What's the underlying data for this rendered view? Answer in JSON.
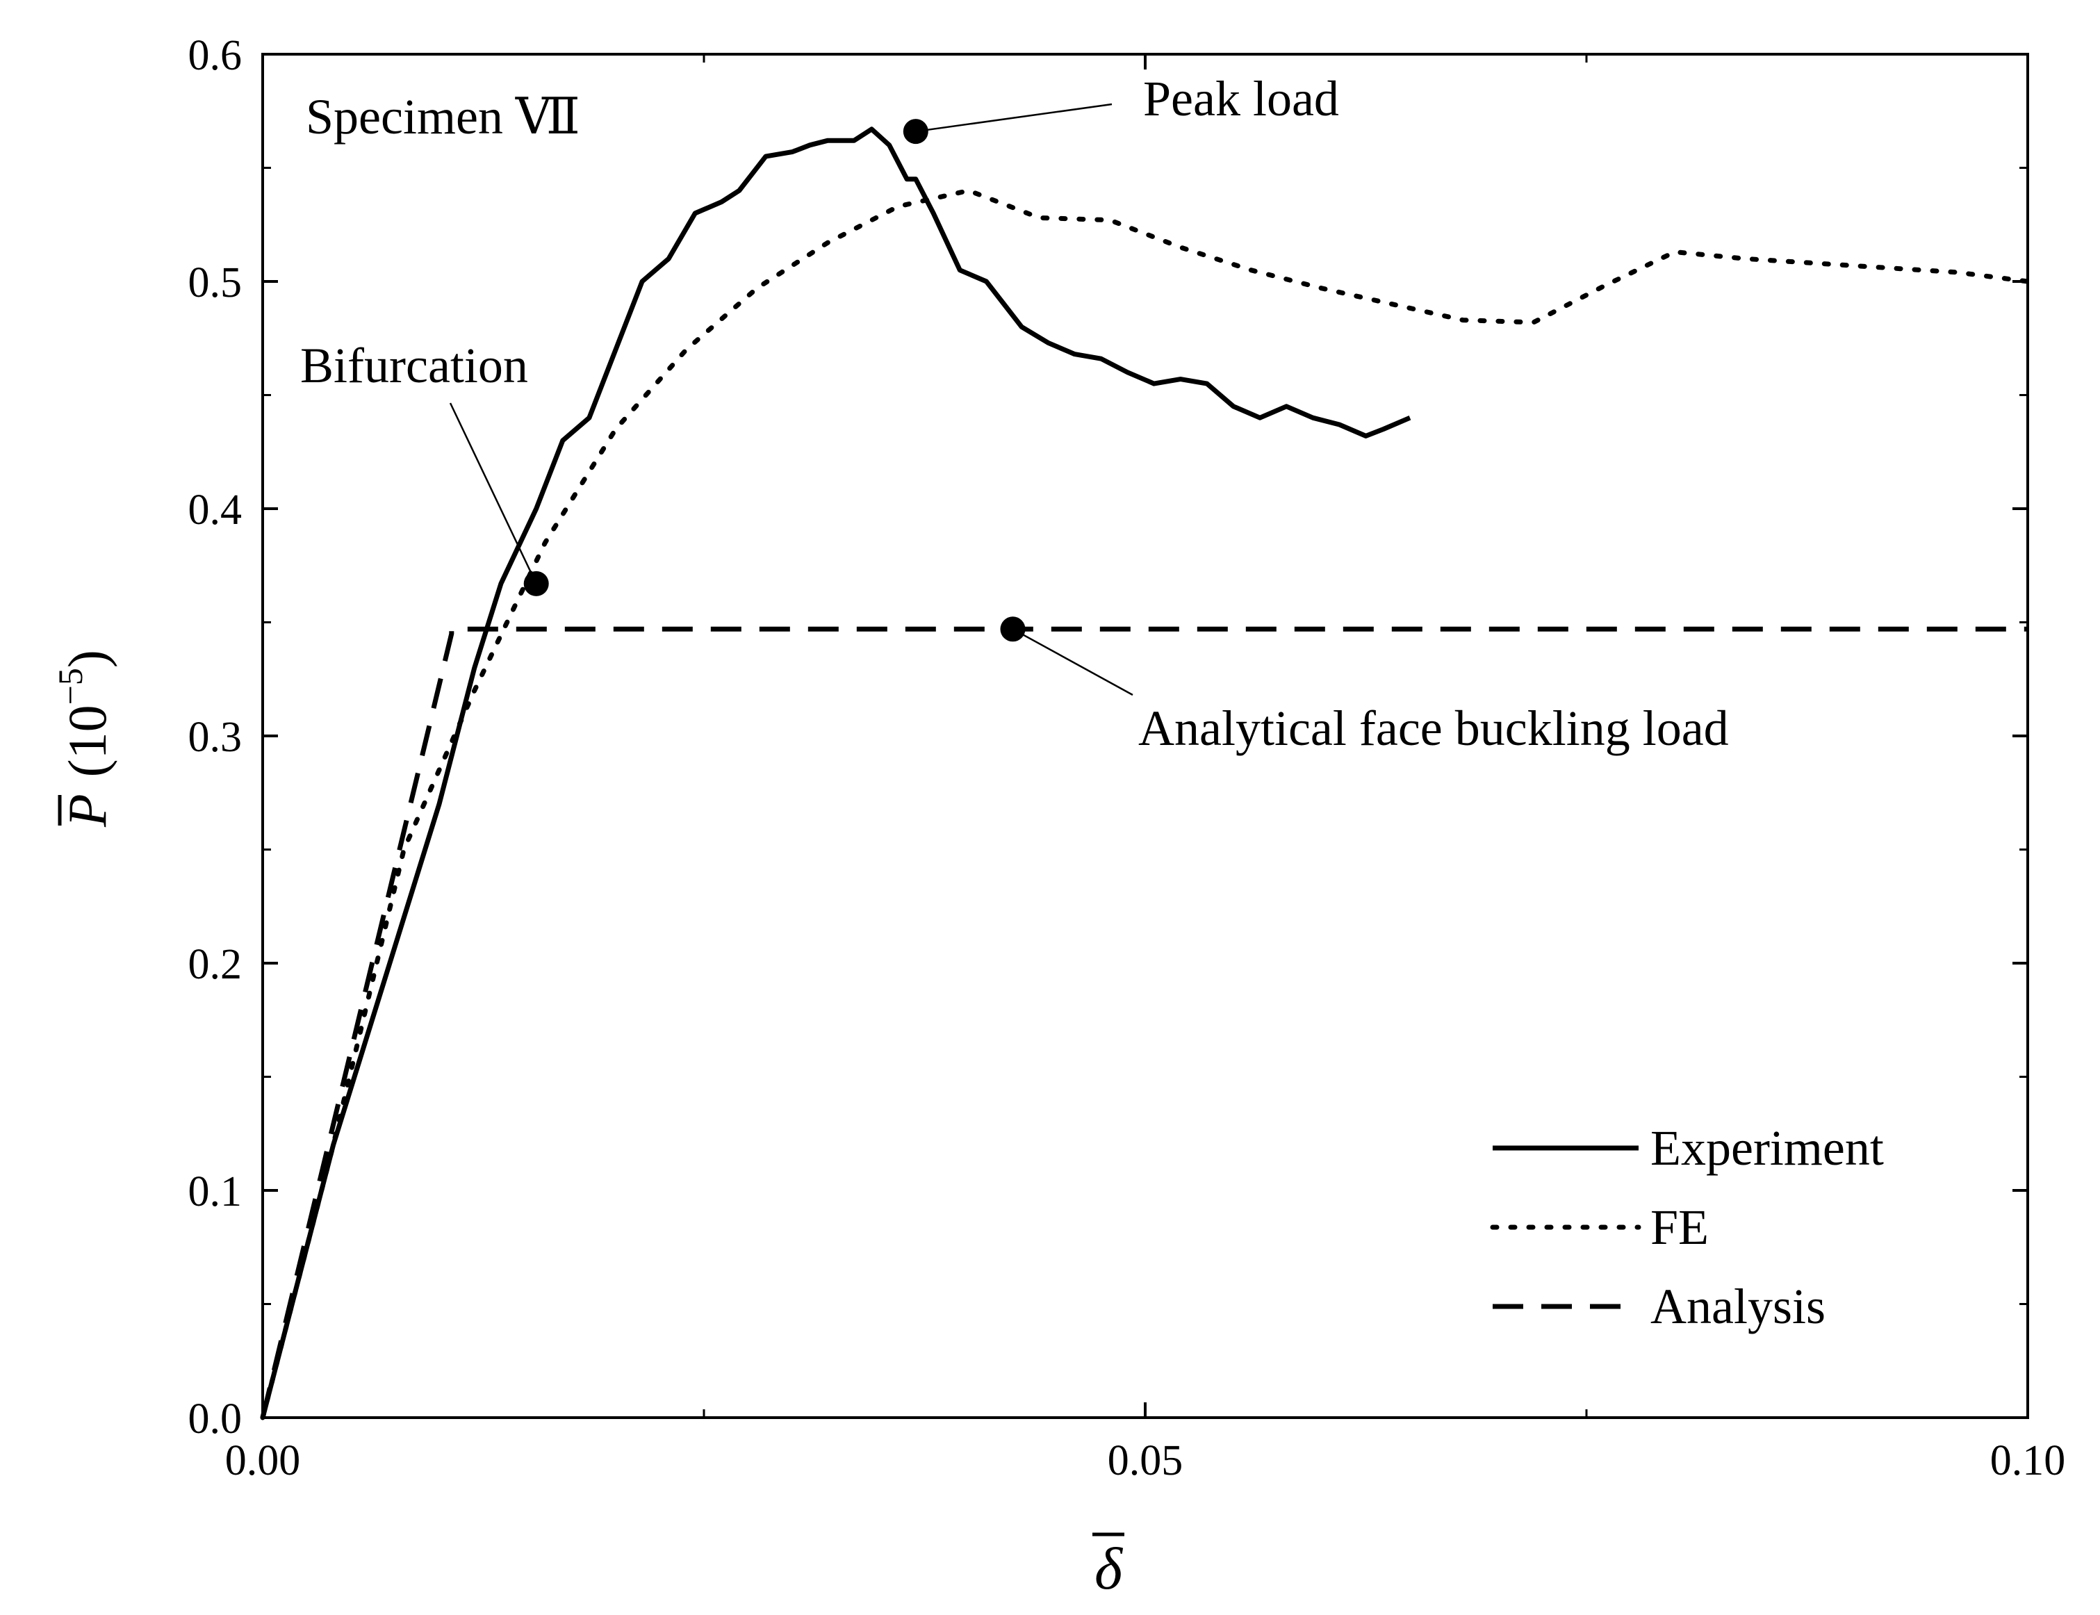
{
  "chart_data": {
    "type": "line",
    "title": "",
    "specimen_label": "Specimen Ⅶ",
    "xlabel": "δ",
    "ylabel": "P",
    "ylabel_unit": "(10",
    "ylabel_exp": "−5",
    "ylabel_close": ")",
    "xlim": [
      0,
      0.1
    ],
    "ylim": [
      0,
      0.6
    ],
    "xticks": [
      0,
      0.05,
      0.1
    ],
    "xtick_labels": [
      "0.00",
      "0.05",
      "0.10"
    ],
    "yticks": [
      0,
      0.1,
      0.2,
      0.3,
      0.4,
      0.5,
      0.6
    ],
    "ytick_labels": [
      "0.0",
      "0.1",
      "0.2",
      "0.3",
      "0.4",
      "0.5",
      "0.6"
    ],
    "grid": false,
    "legend_position": "bottom-right",
    "series": [
      {
        "name": "Experiment",
        "style": "solid",
        "x": [
          0,
          0.002,
          0.004,
          0.006,
          0.008,
          0.01,
          0.011,
          0.012,
          0.0135,
          0.0155,
          0.017,
          0.0185,
          0.02,
          0.0215,
          0.023,
          0.0245,
          0.026,
          0.027,
          0.0285,
          0.03,
          0.031,
          0.032,
          0.0335,
          0.0345,
          0.0355,
          0.0365,
          0.037,
          0.038,
          0.0395,
          0.041,
          0.042,
          0.043,
          0.0445,
          0.046,
          0.0475,
          0.049,
          0.0505,
          0.052,
          0.0535,
          0.055,
          0.0565,
          0.058,
          0.0595,
          0.061,
          0.0625,
          0.0635,
          0.065
        ],
        "values": [
          0,
          0.06,
          0.12,
          0.17,
          0.22,
          0.27,
          0.3,
          0.33,
          0.367,
          0.4,
          0.43,
          0.44,
          0.47,
          0.5,
          0.51,
          0.53,
          0.535,
          0.54,
          0.555,
          0.557,
          0.56,
          0.562,
          0.562,
          0.567,
          0.56,
          0.545,
          0.545,
          0.53,
          0.505,
          0.5,
          0.49,
          0.48,
          0.473,
          0.468,
          0.466,
          0.46,
          0.455,
          0.457,
          0.455,
          0.445,
          0.44,
          0.445,
          0.44,
          0.437,
          0.432,
          0.435,
          0.44
        ]
      },
      {
        "name": "FE",
        "style": "dotted",
        "x": [
          0,
          0.004,
          0.008,
          0.012,
          0.016,
          0.02,
          0.024,
          0.028,
          0.032,
          0.036,
          0.04,
          0.044,
          0.048,
          0.052,
          0.056,
          0.06,
          0.064,
          0.068,
          0.072,
          0.076,
          0.08,
          0.084,
          0.088,
          0.092,
          0.096,
          0.1
        ],
        "values": [
          0,
          0.12,
          0.25,
          0.32,
          0.385,
          0.435,
          0.47,
          0.497,
          0.517,
          0.533,
          0.54,
          0.528,
          0.527,
          0.515,
          0.505,
          0.497,
          0.49,
          0.483,
          0.482,
          0.498,
          0.513,
          0.51,
          0.508,
          0.506,
          0.504,
          0.5
        ]
      },
      {
        "name": "Analysis",
        "style": "dashed",
        "x": [
          0,
          0.0107,
          0.0107,
          0.1
        ],
        "values": [
          0,
          0.345,
          0.347,
          0.347
        ]
      }
    ],
    "markers": [
      {
        "label": "Peak load",
        "x": 0.037,
        "y": 0.566
      },
      {
        "label": "Bifurcation",
        "x": 0.0155,
        "y": 0.367
      },
      {
        "label": "Analytical face buckling load",
        "x": 0.0425,
        "y": 0.347
      }
    ]
  }
}
